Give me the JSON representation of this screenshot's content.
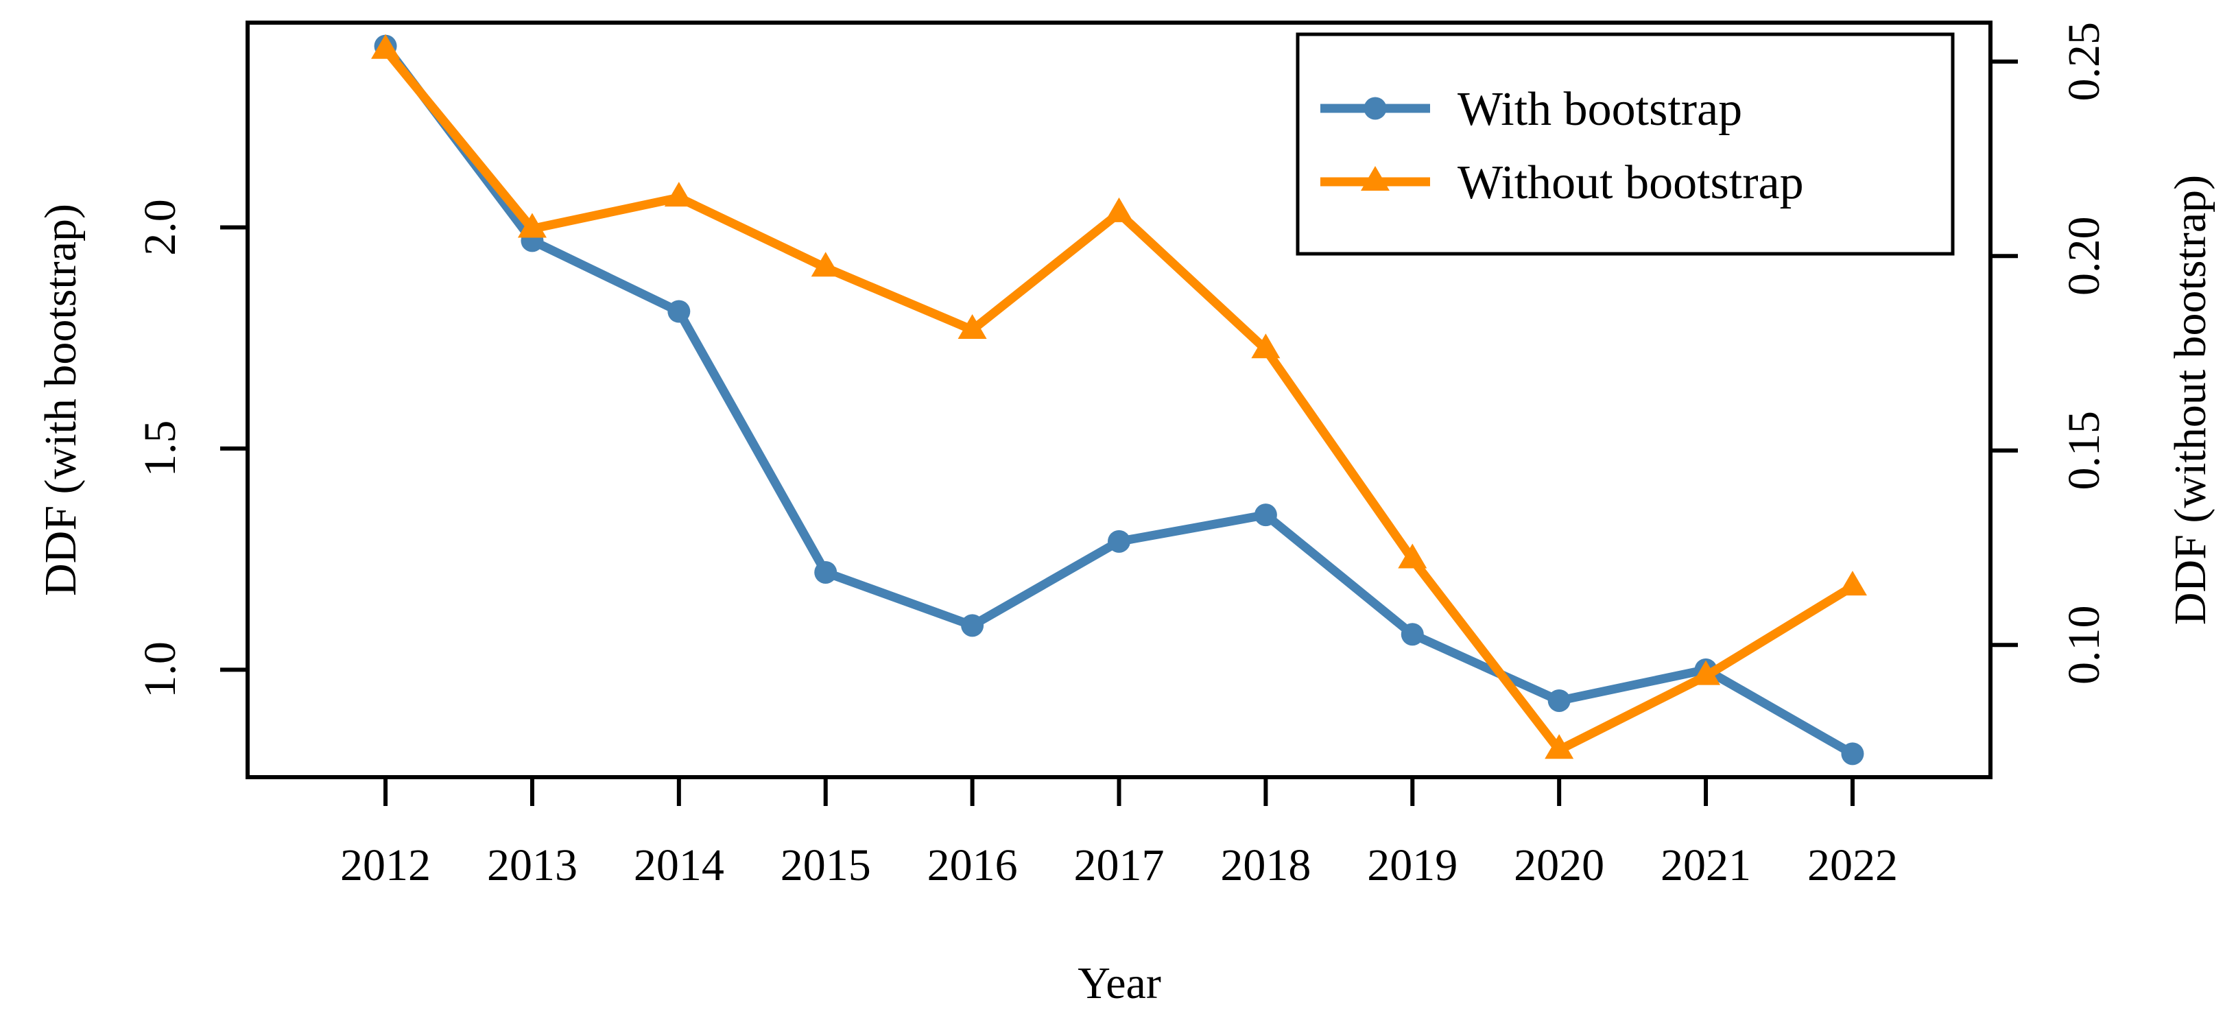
{
  "chart_data": {
    "type": "line",
    "x": [
      2012,
      2013,
      2014,
      2015,
      2016,
      2017,
      2018,
      2019,
      2020,
      2021,
      2022
    ],
    "x_tick_labels": [
      "2012",
      "2013",
      "2014",
      "2015",
      "2016",
      "2017",
      "2018",
      "2019",
      "2020",
      "2021",
      "2022"
    ],
    "series": [
      {
        "name": "With bootstrap",
        "axis": "left",
        "color": "#4682B4",
        "marker": "circle",
        "values": [
          2.41,
          1.97,
          1.81,
          1.22,
          1.1,
          1.29,
          1.35,
          1.08,
          0.93,
          1.0,
          0.81
        ]
      },
      {
        "name": "Without bootstrap",
        "axis": "right",
        "color": "#FF8C00",
        "marker": "triangle",
        "values": [
          0.253,
          0.207,
          0.215,
          0.197,
          0.181,
          0.211,
          0.176,
          0.122,
          0.073,
          0.092,
          0.115
        ]
      }
    ],
    "xlabel": "Year",
    "ylabel_left": "DDF (with bootstrap)",
    "ylabel_right": "DDF (without bootstrap)",
    "left_ticks": [
      1.0,
      1.5,
      2.0
    ],
    "left_tick_labels": [
      "1.0",
      "1.5",
      "2.0"
    ],
    "right_ticks": [
      0.1,
      0.15,
      0.2,
      0.25
    ],
    "right_tick_labels": [
      "0.10",
      "0.15",
      "0.20",
      "0.25"
    ],
    "xlim": [
      2011.06,
      2022.94
    ],
    "left_ylim": [
      0.757,
      2.463
    ],
    "right_ylim": [
      0.066,
      0.26
    ],
    "grid": false,
    "legend": {
      "position": "top-right",
      "entries": [
        "With bootstrap",
        "Without bootstrap"
      ]
    },
    "background": "#FFFFFF",
    "frame_color": "#000000"
  }
}
